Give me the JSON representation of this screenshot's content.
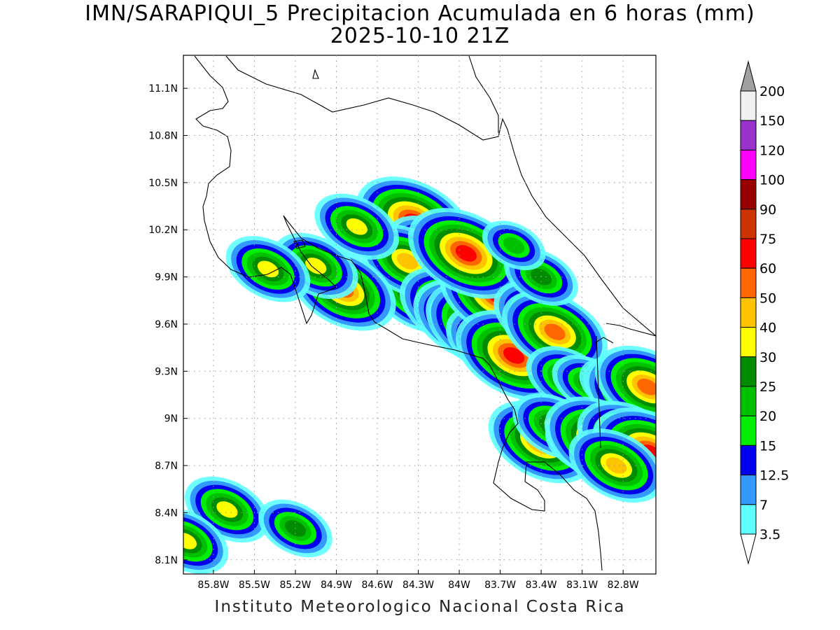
{
  "title": {
    "line1": "IMN/SARAPIQUI_5 Precipitacion Acumulada en 6 horas (mm)",
    "line2": "2025-10-10 21Z"
  },
  "footer": "Instituto Meteorologico Nacional Costa Rica",
  "map": {
    "lon_range": [
      -86.02,
      -82.56
    ],
    "lat_range": [
      8.01,
      11.31
    ],
    "lon_ticks": [
      {
        "value": -85.8,
        "label": "85.8W"
      },
      {
        "value": -85.5,
        "label": "85.5W"
      },
      {
        "value": -85.2,
        "label": "85.2W"
      },
      {
        "value": -84.9,
        "label": "84.9W"
      },
      {
        "value": -84.6,
        "label": "84.6W"
      },
      {
        "value": -84.3,
        "label": "84.3W"
      },
      {
        "value": -84.0,
        "label": "84W"
      },
      {
        "value": -83.7,
        "label": "83.7W"
      },
      {
        "value": -83.4,
        "label": "83.4W"
      },
      {
        "value": -83.1,
        "label": "83.1W"
      },
      {
        "value": -82.8,
        "label": "82.8W"
      }
    ],
    "lat_ticks": [
      {
        "value": 11.1,
        "label": "11.1N"
      },
      {
        "value": 10.8,
        "label": "10.8N"
      },
      {
        "value": 10.5,
        "label": "10.5N"
      },
      {
        "value": 10.2,
        "label": "10.2N"
      },
      {
        "value": 9.9,
        "label": "9.9N"
      },
      {
        "value": 9.6,
        "label": "9.6N"
      },
      {
        "value": 9.3,
        "label": "9.3N"
      },
      {
        "value": 9.0,
        "label": "9N"
      },
      {
        "value": 8.7,
        "label": "8.7N"
      },
      {
        "value": 8.4,
        "label": "8.4N"
      },
      {
        "value": 8.1,
        "label": "8.1N"
      }
    ],
    "grid": "dotted"
  },
  "colorbar": {
    "levels": [
      "3.5",
      "7",
      "12.5",
      "15",
      "20",
      "25",
      "30",
      "40",
      "50",
      "60",
      "75",
      "90",
      "100",
      "120",
      "150",
      "200"
    ],
    "colors": [
      "#ffffff",
      "#5effff",
      "#3399ff",
      "#0000ee",
      "#00ee00",
      "#00c000",
      "#008c00",
      "#ffff00",
      "#ffc400",
      "#ff6600",
      "#ff0000",
      "#cc3300",
      "#990000",
      "#ff00ff",
      "#9933cc",
      "#f0f0f0",
      "#a0a0a0"
    ]
  },
  "precip_cells": [
    {
      "lon": -84.15,
      "lat": 9.86,
      "intensity": 8
    },
    {
      "lon": -84.3,
      "lat": 9.78,
      "intensity": 8
    },
    {
      "lon": -84.33,
      "lat": 10.25,
      "intensity": 10
    },
    {
      "lon": -84.22,
      "lat": 10.08,
      "intensity": 7
    },
    {
      "lon": -84.38,
      "lat": 10.0,
      "intensity": 8
    },
    {
      "lon": -84.05,
      "lat": 9.7,
      "intensity": 9
    },
    {
      "lon": -83.95,
      "lat": 9.62,
      "intensity": 9
    },
    {
      "lon": -83.82,
      "lat": 9.58,
      "intensity": 10
    },
    {
      "lon": -83.75,
      "lat": 9.48,
      "intensity": 8
    },
    {
      "lon": -83.72,
      "lat": 9.78,
      "intensity": 10
    },
    {
      "lon": -83.95,
      "lat": 10.05,
      "intensity": 10
    },
    {
      "lon": -83.6,
      "lat": 9.4,
      "intensity": 10
    },
    {
      "lon": -83.4,
      "lat": 9.64,
      "intensity": 8
    },
    {
      "lon": -83.3,
      "lat": 9.55,
      "intensity": 9
    },
    {
      "lon": -83.2,
      "lat": 9.25,
      "intensity": 7
    },
    {
      "lon": -83.05,
      "lat": 9.22,
      "intensity": 6
    },
    {
      "lon": -82.85,
      "lat": 9.2,
      "intensity": 6
    },
    {
      "lon": -82.7,
      "lat": 9.15,
      "intensity": 9
    },
    {
      "lon": -82.62,
      "lat": 9.2,
      "intensity": 9
    },
    {
      "lon": -83.4,
      "lat": 8.85,
      "intensity": 9
    },
    {
      "lon": -83.3,
      "lat": 8.95,
      "intensity": 7
    },
    {
      "lon": -83.1,
      "lat": 8.83,
      "intensity": 6
    },
    {
      "lon": -82.95,
      "lat": 8.85,
      "intensity": 10
    },
    {
      "lon": -82.75,
      "lat": 8.85,
      "intensity": 9
    },
    {
      "lon": -82.6,
      "lat": 8.78,
      "intensity": 10
    },
    {
      "lon": -82.85,
      "lat": 8.7,
      "intensity": 8
    },
    {
      "lon": -84.85,
      "lat": 9.82,
      "intensity": 9
    },
    {
      "lon": -85.05,
      "lat": 9.97,
      "intensity": 7
    },
    {
      "lon": -85.4,
      "lat": 9.95,
      "intensity": 7
    },
    {
      "lon": -84.75,
      "lat": 10.22,
      "intensity": 7
    },
    {
      "lon": -85.7,
      "lat": 8.42,
      "intensity": 7
    },
    {
      "lon": -85.2,
      "lat": 8.3,
      "intensity": 6
    },
    {
      "lon": -86.0,
      "lat": 8.22,
      "intensity": 7
    },
    {
      "lon": -83.4,
      "lat": 9.9,
      "intensity": 6
    },
    {
      "lon": -83.6,
      "lat": 10.1,
      "intensity": 5
    }
  ]
}
